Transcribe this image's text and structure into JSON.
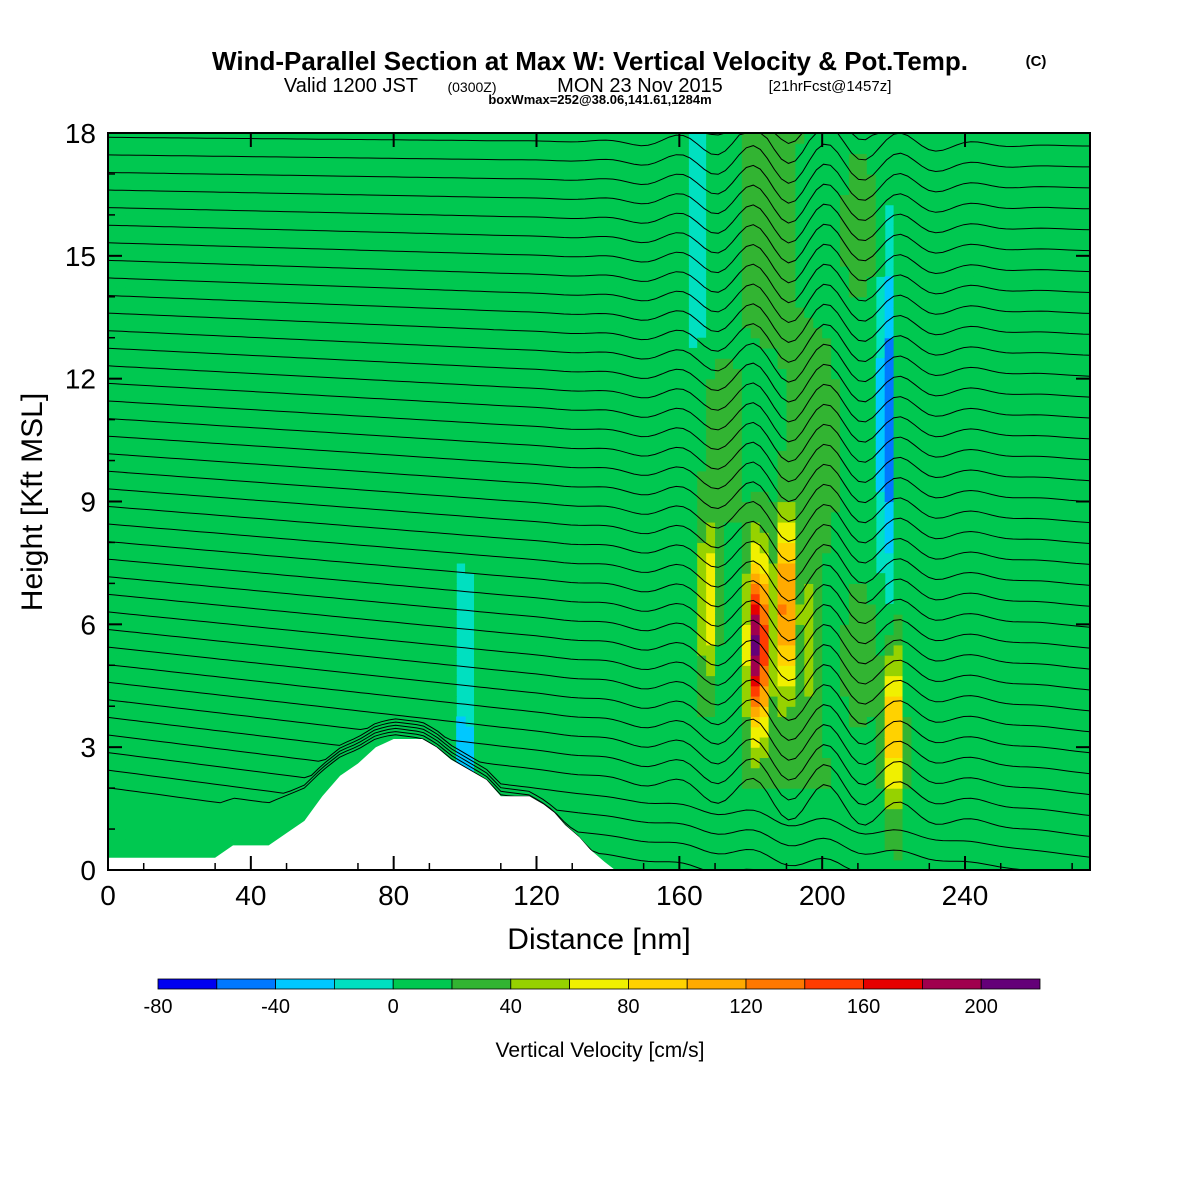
{
  "header": {
    "title_main": "Wind-Parallel Section at Max W: Vertical Velocity & Pot.Temp.",
    "title_mark": "(C)",
    "valid_a": "Valid 1200 JST",
    "valid_utc": "(0300Z)",
    "valid_b": "MON 23 Nov 2015",
    "forecast": "[21hrFcst@1457z]",
    "box_info": "boxWmax=252@38.06,141.61,1284m"
  },
  "chart_data": {
    "type": "heatmap",
    "xlabel": "Distance [nm]",
    "ylabel": "Height [Kft MSL]",
    "xlim": [
      0,
      275
    ],
    "ylim": [
      0,
      18
    ],
    "x_ticks": [
      "0",
      "40",
      "80",
      "120",
      "160",
      "200",
      "240"
    ],
    "x_tick_values": [
      0,
      40,
      80,
      120,
      160,
      200,
      240
    ],
    "y_ticks": [
      "0",
      "3",
      "6",
      "9",
      "12",
      "15",
      "18"
    ],
    "y_tick_values": [
      0,
      3,
      6,
      9,
      12,
      15,
      18
    ],
    "colorbar": {
      "label": "Vertical Velocity [cm/s]",
      "tick_labels": [
        "-80",
        "-40",
        "0",
        "40",
        "80",
        "120",
        "160",
        "200"
      ],
      "tick_values": [
        -80,
        -40,
        0,
        40,
        80,
        120,
        160,
        200
      ],
      "range": [
        -80,
        220
      ],
      "step": 20,
      "colors": [
        "#0000f0",
        "#0078ff",
        "#00c8ff",
        "#00e0c0",
        "#00c850",
        "#32b432",
        "#96d200",
        "#f0f000",
        "#ffd200",
        "#ffaa00",
        "#ff7800",
        "#ff3c00",
        "#e60000",
        "#a0004e",
        "#640078"
      ]
    },
    "background_value": 10,
    "updraft_cores": [
      {
        "x": 168,
        "z": 6.5,
        "w": 80
      },
      {
        "x": 182,
        "z": 5.5,
        "w": 200
      },
      {
        "x": 190,
        "z": 6.5,
        "w": 130
      },
      {
        "x": 197,
        "z": 5.5,
        "w": 50
      },
      {
        "x": 220,
        "z": 3.5,
        "w": 110
      }
    ],
    "downdraft_cores": [
      {
        "x": 218,
        "z": 11,
        "w": -70
      },
      {
        "x": 100,
        "z": 3.3,
        "w": -40
      },
      {
        "x": 165,
        "z": 16,
        "w": -30
      }
    ],
    "terrain_profile": [
      [
        0,
        0.3
      ],
      [
        30,
        0.3
      ],
      [
        35,
        0.6
      ],
      [
        45,
        0.6
      ],
      [
        50,
        0.9
      ],
      [
        55,
        1.2
      ],
      [
        60,
        1.8
      ],
      [
        65,
        2.3
      ],
      [
        70,
        2.6
      ],
      [
        75,
        3.0
      ],
      [
        80,
        3.2
      ],
      [
        88,
        3.2
      ],
      [
        92,
        3.0
      ],
      [
        96,
        2.7
      ],
      [
        100,
        2.5
      ],
      [
        106,
        2.2
      ],
      [
        110,
        1.8
      ],
      [
        115,
        1.8
      ],
      [
        118,
        1.8
      ],
      [
        122,
        1.6
      ],
      [
        125,
        1.4
      ],
      [
        128,
        1.1
      ],
      [
        132,
        0.8
      ],
      [
        135,
        0.5
      ],
      [
        139,
        0.2
      ],
      [
        142,
        0
      ],
      [
        275,
        0
      ]
    ],
    "theta_isentropes": {
      "count": 40,
      "shown": "black contour lines"
    },
    "grid": false
  }
}
